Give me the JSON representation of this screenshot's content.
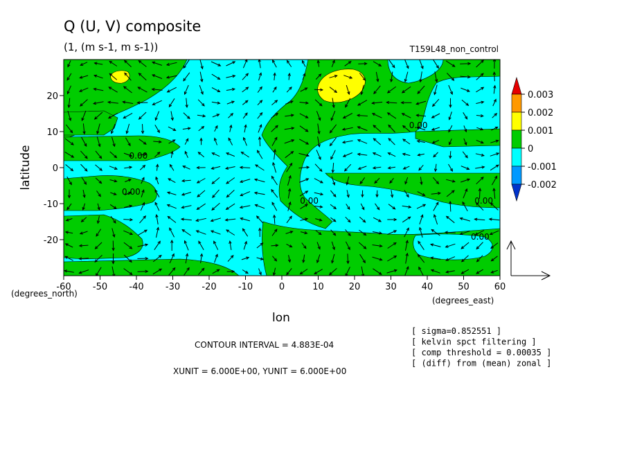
{
  "chart_data": {
    "type": "heatmap",
    "title": "Q (U, V) composite",
    "subtitle": "(1, (m s-1, m s-1))",
    "run_label": "T159L48_non_control",
    "xlabel": "lon",
    "ylabel": "latitude",
    "x_unit_label": "(degrees_east)",
    "y_unit_label": "(degrees_north)",
    "xlim": [
      -60,
      60
    ],
    "ylim": [
      -30,
      30
    ],
    "x_ticks": [
      -60,
      -50,
      -40,
      -30,
      -20,
      -10,
      0,
      10,
      20,
      30,
      40,
      50,
      60
    ],
    "y_ticks": [
      -20,
      -10,
      0,
      10,
      20
    ],
    "x_tick_labels": [
      "-60",
      "-50",
      "-40",
      "-30",
      "-20",
      "-10",
      "0",
      "10",
      "20",
      "30",
      "40",
      "50",
      "60"
    ],
    "y_tick_labels": [
      "-20",
      "-10",
      "0",
      "10",
      "20"
    ],
    "contour_labels": [
      {
        "text": "0.00",
        "lon": -42,
        "lat": 2.5
      },
      {
        "text": "0.00",
        "lon": -44,
        "lat": -7.5
      },
      {
        "text": "0.00",
        "lon": 5,
        "lat": -10
      },
      {
        "text": "0.00",
        "lon": 53,
        "lat": -10
      },
      {
        "text": "0.00",
        "lon": 52,
        "lat": -20
      },
      {
        "text": "0.00",
        "lon": 35,
        "lat": 11
      }
    ],
    "colorbar": {
      "levels": [
        "0.003",
        "0.002",
        "0.001",
        "0",
        "-0.001",
        "-0.002"
      ],
      "colors": [
        "#e60000",
        "#ff9900",
        "#ffff00",
        "#00cc00",
        "#00ffff",
        "#0099ff",
        "#0033cc"
      ]
    },
    "field_colors": {
      "negative": "#00ffff",
      "positive": "#00cc00",
      "high": "#ffff00"
    },
    "vector_field": "arrows showing (U, V) composite winds",
    "reference_vector": {
      "xunit": "6.000E+00",
      "yunit": "6.000E+00"
    },
    "annotations": {
      "contour_interval": "CONTOUR INTERVAL = 4.883E-04",
      "units": "XUNIT = 6.000E+00, YUNIT = 6.000E+00",
      "notes": [
        "[ sigma=0.852551 ]",
        "[ kelvin spct filtering ]",
        "[ comp threshold = 0.00035 ]",
        "[ (diff) from (mean) zonal ]"
      ]
    }
  }
}
